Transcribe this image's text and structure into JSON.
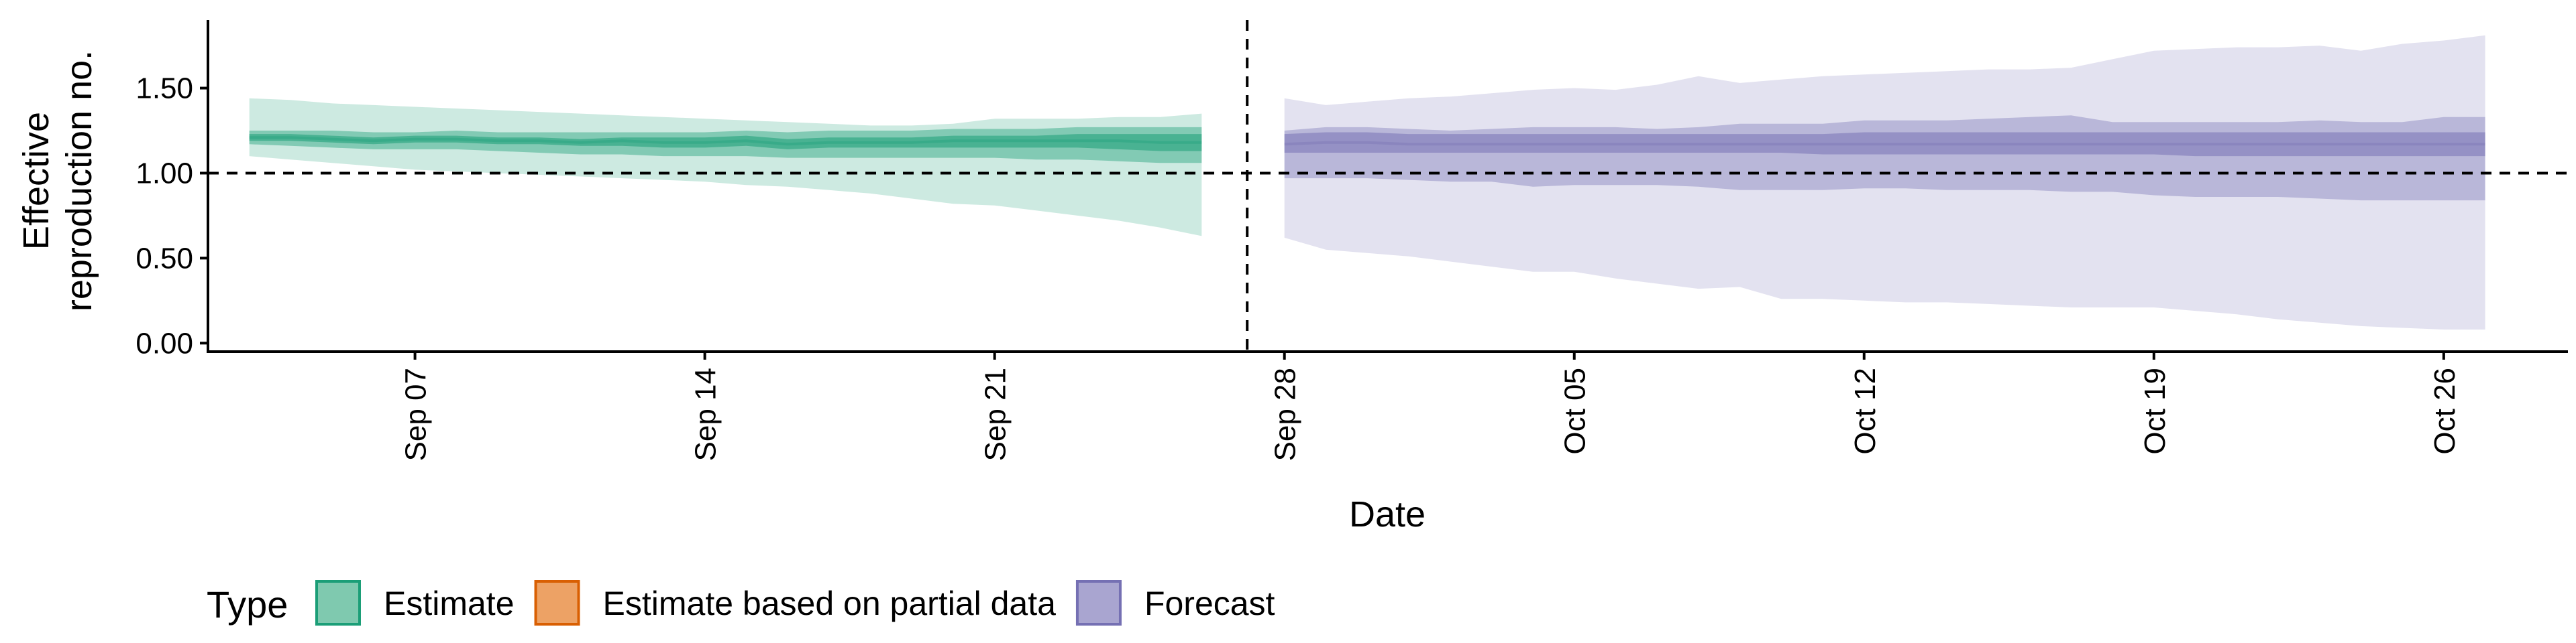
{
  "chart_data": {
    "type": "area",
    "title": "",
    "xlabel": "Date",
    "ylabel_lines": [
      "Effective",
      "reproduction no."
    ],
    "x_range": [
      "2020-09-02",
      "2020-10-29"
    ],
    "ylim": [
      -0.05,
      1.9
    ],
    "y_ticks": [
      0.0,
      0.5,
      1.0,
      1.5
    ],
    "y_tick_labels": [
      "0.00",
      "0.50",
      "1.00",
      "1.50"
    ],
    "x_ticks": [
      "2020-09-07",
      "2020-09-14",
      "2020-09-21",
      "2020-09-28",
      "2020-10-05",
      "2020-10-12",
      "2020-10-19",
      "2020-10-26"
    ],
    "x_tick_labels": [
      "Sep 07",
      "Sep 14",
      "Sep 21",
      "Sep 28",
      "Oct 05",
      "Oct 12",
      "Oct 19",
      "Oct 26"
    ],
    "hline": 1.0,
    "vline": "2020-09-27",
    "grid": false,
    "legend": {
      "title": "Type",
      "position": "bottom",
      "items": [
        {
          "label": "Estimate",
          "fill": "#7fc9af",
          "stroke": "#1b9e77"
        },
        {
          "label": "Estimate based on partial data",
          "fill": "#eda265",
          "stroke": "#d95f02"
        },
        {
          "label": "Forecast",
          "fill": "#a9a5d0",
          "stroke": "#7570b3"
        }
      ]
    },
    "colors": {
      "Estimate": "#1b9e77",
      "Estimate based on partial data": "#d95f02",
      "Forecast": "#7570b3"
    },
    "series": [
      {
        "name": "Estimate",
        "x": [
          "2020-09-03",
          "2020-09-04",
          "2020-09-05",
          "2020-09-06",
          "2020-09-07",
          "2020-09-08",
          "2020-09-09",
          "2020-09-10",
          "2020-09-11",
          "2020-09-12",
          "2020-09-13",
          "2020-09-14",
          "2020-09-15",
          "2020-09-16",
          "2020-09-17",
          "2020-09-18",
          "2020-09-19",
          "2020-09-20",
          "2020-09-21",
          "2020-09-22",
          "2020-09-23",
          "2020-09-24",
          "2020-09-25",
          "2020-09-26"
        ],
        "median": [
          1.21,
          1.21,
          1.2,
          1.19,
          1.2,
          1.2,
          1.19,
          1.19,
          1.18,
          1.19,
          1.18,
          1.18,
          1.19,
          1.17,
          1.18,
          1.18,
          1.18,
          1.19,
          1.19,
          1.19,
          1.19,
          1.19,
          1.18,
          1.18
        ],
        "lower_20": [
          1.19,
          1.19,
          1.18,
          1.17,
          1.18,
          1.18,
          1.17,
          1.17,
          1.16,
          1.16,
          1.15,
          1.15,
          1.16,
          1.14,
          1.15,
          1.15,
          1.15,
          1.15,
          1.15,
          1.15,
          1.15,
          1.14,
          1.13,
          1.13
        ],
        "upper_20": [
          1.23,
          1.23,
          1.22,
          1.21,
          1.22,
          1.22,
          1.21,
          1.21,
          1.2,
          1.21,
          1.21,
          1.21,
          1.22,
          1.2,
          1.21,
          1.21,
          1.21,
          1.22,
          1.22,
          1.22,
          1.23,
          1.23,
          1.23,
          1.23
        ],
        "lower_50": [
          1.17,
          1.16,
          1.15,
          1.14,
          1.14,
          1.14,
          1.13,
          1.12,
          1.11,
          1.11,
          1.1,
          1.1,
          1.1,
          1.09,
          1.09,
          1.09,
          1.09,
          1.09,
          1.09,
          1.08,
          1.08,
          1.07,
          1.06,
          1.06
        ],
        "upper_50": [
          1.25,
          1.25,
          1.25,
          1.24,
          1.24,
          1.25,
          1.24,
          1.24,
          1.24,
          1.24,
          1.24,
          1.24,
          1.25,
          1.24,
          1.25,
          1.25,
          1.25,
          1.26,
          1.26,
          1.26,
          1.27,
          1.27,
          1.27,
          1.27
        ],
        "lower_90": [
          1.1,
          1.08,
          1.06,
          1.04,
          1.02,
          1.01,
          1.0,
          0.99,
          0.98,
          0.97,
          0.96,
          0.95,
          0.93,
          0.92,
          0.9,
          0.88,
          0.85,
          0.82,
          0.81,
          0.78,
          0.75,
          0.72,
          0.68,
          0.63
        ],
        "upper_90": [
          1.44,
          1.43,
          1.41,
          1.4,
          1.39,
          1.38,
          1.37,
          1.36,
          1.35,
          1.34,
          1.33,
          1.32,
          1.31,
          1.3,
          1.29,
          1.28,
          1.28,
          1.29,
          1.32,
          1.32,
          1.32,
          1.33,
          1.33,
          1.35
        ]
      },
      {
        "name": "Forecast",
        "x": [
          "2020-09-28",
          "2020-09-29",
          "2020-09-30",
          "2020-10-01",
          "2020-10-02",
          "2020-10-03",
          "2020-10-04",
          "2020-10-05",
          "2020-10-06",
          "2020-10-07",
          "2020-10-08",
          "2020-10-09",
          "2020-10-10",
          "2020-10-11",
          "2020-10-12",
          "2020-10-13",
          "2020-10-14",
          "2020-10-15",
          "2020-10-16",
          "2020-10-17",
          "2020-10-18",
          "2020-10-19",
          "2020-10-20",
          "2020-10-21",
          "2020-10-22",
          "2020-10-23",
          "2020-10-24",
          "2020-10-25",
          "2020-10-26",
          "2020-10-27"
        ],
        "median": [
          1.17,
          1.18,
          1.18,
          1.17,
          1.17,
          1.17,
          1.17,
          1.17,
          1.17,
          1.17,
          1.17,
          1.17,
          1.17,
          1.17,
          1.17,
          1.17,
          1.17,
          1.17,
          1.17,
          1.17,
          1.17,
          1.17,
          1.17,
          1.17,
          1.17,
          1.17,
          1.17,
          1.17,
          1.17,
          1.17
        ],
        "lower_20": [
          1.12,
          1.12,
          1.12,
          1.12,
          1.12,
          1.12,
          1.12,
          1.12,
          1.12,
          1.12,
          1.12,
          1.12,
          1.12,
          1.11,
          1.11,
          1.11,
          1.11,
          1.11,
          1.11,
          1.11,
          1.11,
          1.11,
          1.1,
          1.1,
          1.1,
          1.1,
          1.1,
          1.1,
          1.1,
          1.1
        ],
        "upper_20": [
          1.23,
          1.24,
          1.24,
          1.23,
          1.23,
          1.23,
          1.23,
          1.23,
          1.23,
          1.23,
          1.23,
          1.23,
          1.23,
          1.23,
          1.24,
          1.24,
          1.24,
          1.24,
          1.24,
          1.24,
          1.24,
          1.24,
          1.24,
          1.24,
          1.24,
          1.24,
          1.24,
          1.24,
          1.24,
          1.24
        ],
        "lower_50": [
          0.97,
          0.97,
          0.97,
          0.96,
          0.95,
          0.95,
          0.92,
          0.93,
          0.93,
          0.93,
          0.92,
          0.9,
          0.9,
          0.9,
          0.91,
          0.91,
          0.9,
          0.9,
          0.9,
          0.89,
          0.89,
          0.87,
          0.86,
          0.86,
          0.86,
          0.85,
          0.84,
          0.84,
          0.84,
          0.84
        ],
        "upper_50": [
          1.25,
          1.27,
          1.27,
          1.26,
          1.25,
          1.26,
          1.27,
          1.27,
          1.27,
          1.26,
          1.27,
          1.29,
          1.29,
          1.29,
          1.31,
          1.31,
          1.31,
          1.32,
          1.33,
          1.34,
          1.3,
          1.3,
          1.3,
          1.3,
          1.3,
          1.31,
          1.3,
          1.3,
          1.33,
          1.33
        ],
        "lower_90": [
          0.62,
          0.55,
          0.53,
          0.51,
          0.48,
          0.45,
          0.42,
          0.42,
          0.38,
          0.35,
          0.32,
          0.33,
          0.26,
          0.26,
          0.25,
          0.24,
          0.24,
          0.23,
          0.22,
          0.21,
          0.21,
          0.21,
          0.19,
          0.17,
          0.14,
          0.12,
          0.1,
          0.09,
          0.08,
          0.08
        ],
        "upper_90": [
          1.44,
          1.4,
          1.42,
          1.44,
          1.45,
          1.47,
          1.49,
          1.5,
          1.49,
          1.52,
          1.57,
          1.53,
          1.55,
          1.57,
          1.58,
          1.59,
          1.6,
          1.61,
          1.61,
          1.62,
          1.67,
          1.72,
          1.73,
          1.74,
          1.74,
          1.75,
          1.72,
          1.76,
          1.78,
          1.81
        ]
      }
    ]
  }
}
